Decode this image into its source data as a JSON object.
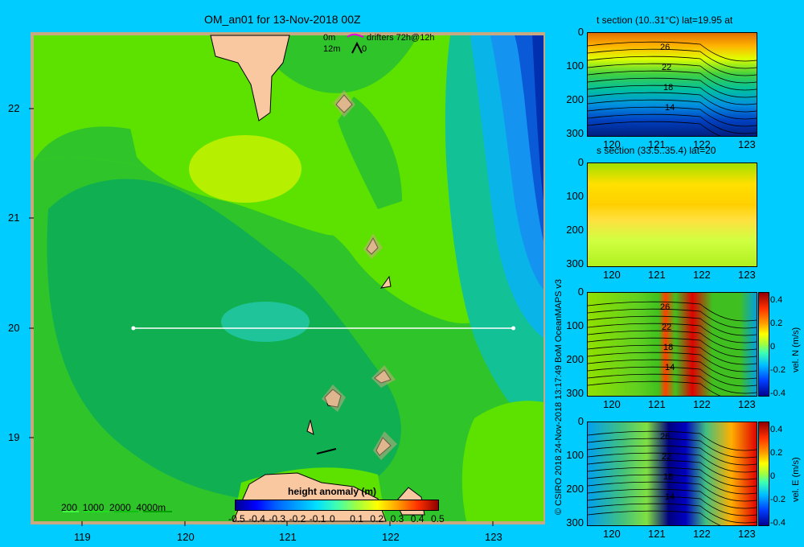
{
  "main_map": {
    "title": "OM_an01 for 13-Nov-2018 00Z",
    "legend": {
      "row1_depth": "0m",
      "row1_label": "drifters 72h@12h",
      "row2_depth": "12m",
      "row2_value": "0"
    },
    "x_ticks": [
      "119",
      "120",
      "121",
      "122",
      "123"
    ],
    "y_ticks": [
      "22",
      "21",
      "20",
      "19"
    ],
    "bathy_label": "200  1000  2000  4000m",
    "colorbar": {
      "label": "height anomaly (m)",
      "ticks": [
        "-0.5",
        "-0.4",
        "-0.3",
        "-0.2",
        "-0.1",
        "0",
        "0.1",
        "0.2",
        "0.3",
        "0.4",
        "0.5"
      ]
    },
    "section_line": {
      "lon_start": 119.5,
      "lon_end": 123.2,
      "lat": 20
    }
  },
  "credit": "© CSIRO 2018   24-Nov-2018 13:17:49 BoM OceanMAPS v3",
  "panels": [
    {
      "title": "t section (10..31°C) lat=19.95 at",
      "contours": [
        "26",
        "22",
        "18",
        "14"
      ],
      "colorbar": null
    },
    {
      "title": "s section (33.5..35.4) lat=20",
      "contours": [],
      "colorbar": null
    },
    {
      "title": "",
      "contours": [
        "26",
        "22",
        "18",
        "14"
      ],
      "colorbar": {
        "label": "vel. N (m/s)",
        "ticks": [
          "0.4",
          "0.2",
          "0",
          "-0.2",
          "-0.4"
        ]
      }
    },
    {
      "title": "",
      "contours": [
        "26",
        "22",
        "18",
        "14"
      ],
      "colorbar": {
        "label": "vel. E (m/s)",
        "ticks": [
          "0.4",
          "0.2",
          "0",
          "-0.2",
          "-0.4"
        ]
      }
    }
  ],
  "panel_axes": {
    "y_ticks": [
      "0",
      "100",
      "200",
      "300"
    ],
    "x_ticks": [
      "120",
      "121",
      "122",
      "123"
    ]
  }
}
